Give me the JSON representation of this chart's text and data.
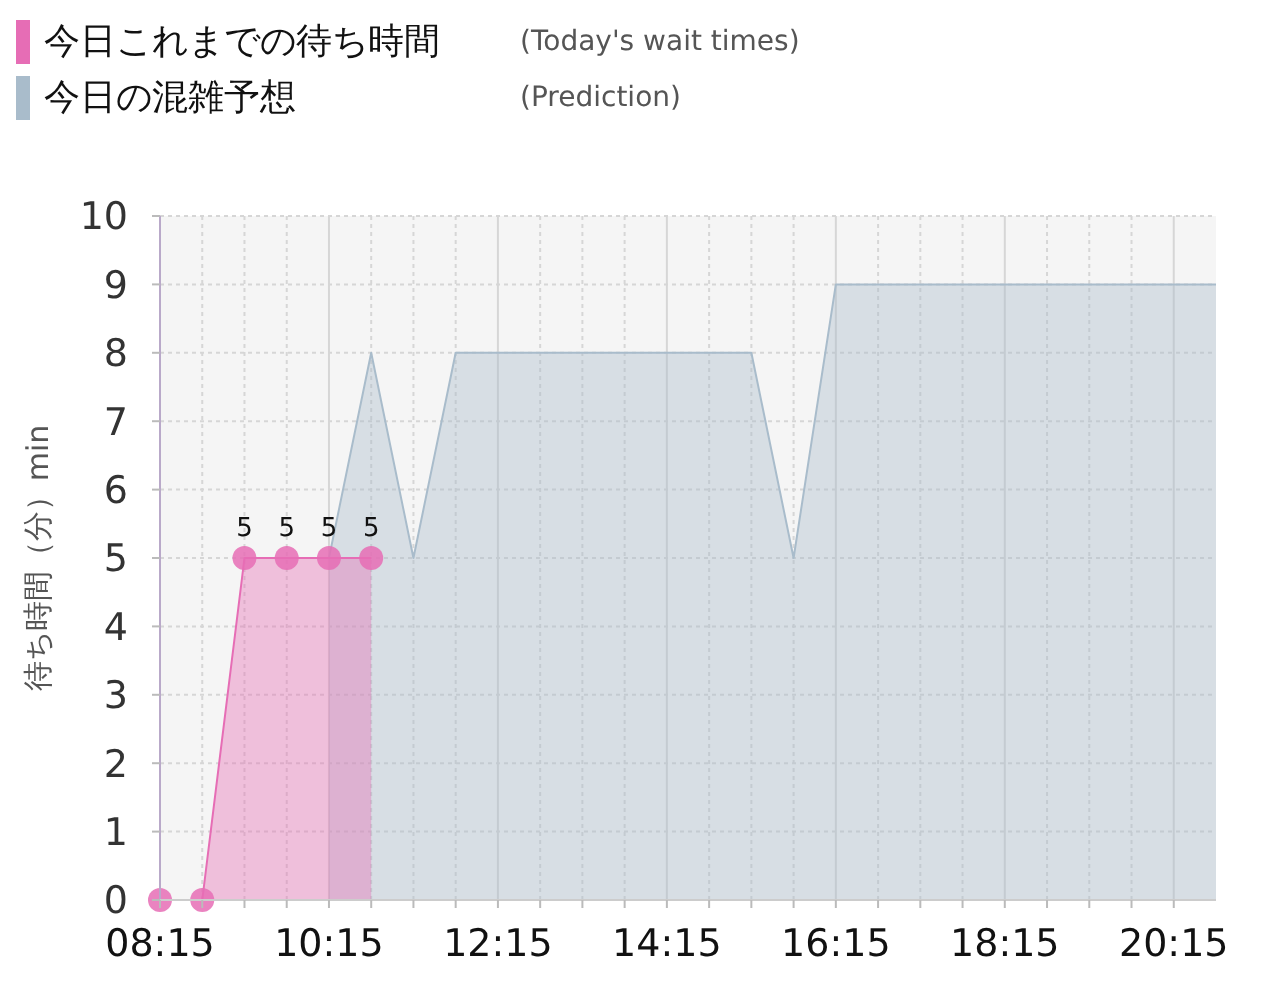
{
  "chart_data": {
    "type": "area",
    "ylabel": "待ち時間（分）min",
    "annotations": [
      "(Today's wait times)",
      "(Prediction)"
    ],
    "series": [
      {
        "name": "今日の混雑予想",
        "color": "#a9bccb",
        "marker": "none",
        "x": [
          10.25,
          10.75,
          11.25,
          11.75,
          12.25,
          12.75,
          13.25,
          13.75,
          14.25,
          14.75,
          15.25,
          15.75,
          16.25,
          16.75,
          17.25,
          17.75,
          18.25,
          18.75,
          19.25,
          19.75,
          20.25,
          20.75
        ],
        "values": [
          5,
          8,
          5,
          8,
          8,
          8,
          8,
          8,
          8,
          8,
          8,
          5,
          9,
          9,
          9,
          9,
          9,
          9,
          9,
          9,
          9,
          9
        ]
      },
      {
        "name": "今日これまでの待ち時間",
        "color": "#e66db5",
        "marker": "circle",
        "x": [
          8.25,
          8.75,
          9.25,
          9.75,
          10.25,
          10.75
        ],
        "values": [
          0,
          0,
          5,
          5,
          5,
          5
        ],
        "value_labels": [
          null,
          null,
          "5",
          "5",
          "5",
          "5"
        ]
      }
    ],
    "xlim": [
      8.25,
      20.75
    ],
    "xticks": [
      {
        "value": 8.25,
        "label": "08:15"
      },
      {
        "value": 8.75,
        "label": null
      },
      {
        "value": 9.25,
        "label": null
      },
      {
        "value": 9.75,
        "label": null
      },
      {
        "value": 10.25,
        "label": "10:15"
      },
      {
        "value": 10.75,
        "label": null
      },
      {
        "value": 11.25,
        "label": null
      },
      {
        "value": 11.75,
        "label": null
      },
      {
        "value": 12.25,
        "label": "12:15"
      },
      {
        "value": 12.75,
        "label": null
      },
      {
        "value": 13.25,
        "label": null
      },
      {
        "value": 13.75,
        "label": null
      },
      {
        "value": 14.25,
        "label": "14:15"
      },
      {
        "value": 14.75,
        "label": null
      },
      {
        "value": 15.25,
        "label": null
      },
      {
        "value": 15.75,
        "label": null
      },
      {
        "value": 16.25,
        "label": "16:15"
      },
      {
        "value": 16.75,
        "label": null
      },
      {
        "value": 17.25,
        "label": null
      },
      {
        "value": 17.75,
        "label": null
      },
      {
        "value": 18.25,
        "label": "18:15"
      },
      {
        "value": 18.75,
        "label": null
      },
      {
        "value": 19.25,
        "label": null
      },
      {
        "value": 19.75,
        "label": null
      },
      {
        "value": 20.25,
        "label": "20:15"
      }
    ],
    "ylim": [
      0,
      10
    ],
    "yticks": [
      0,
      1,
      2,
      3,
      4,
      5,
      6,
      7,
      8,
      9,
      10
    ],
    "grid": true,
    "legend": "top left"
  }
}
